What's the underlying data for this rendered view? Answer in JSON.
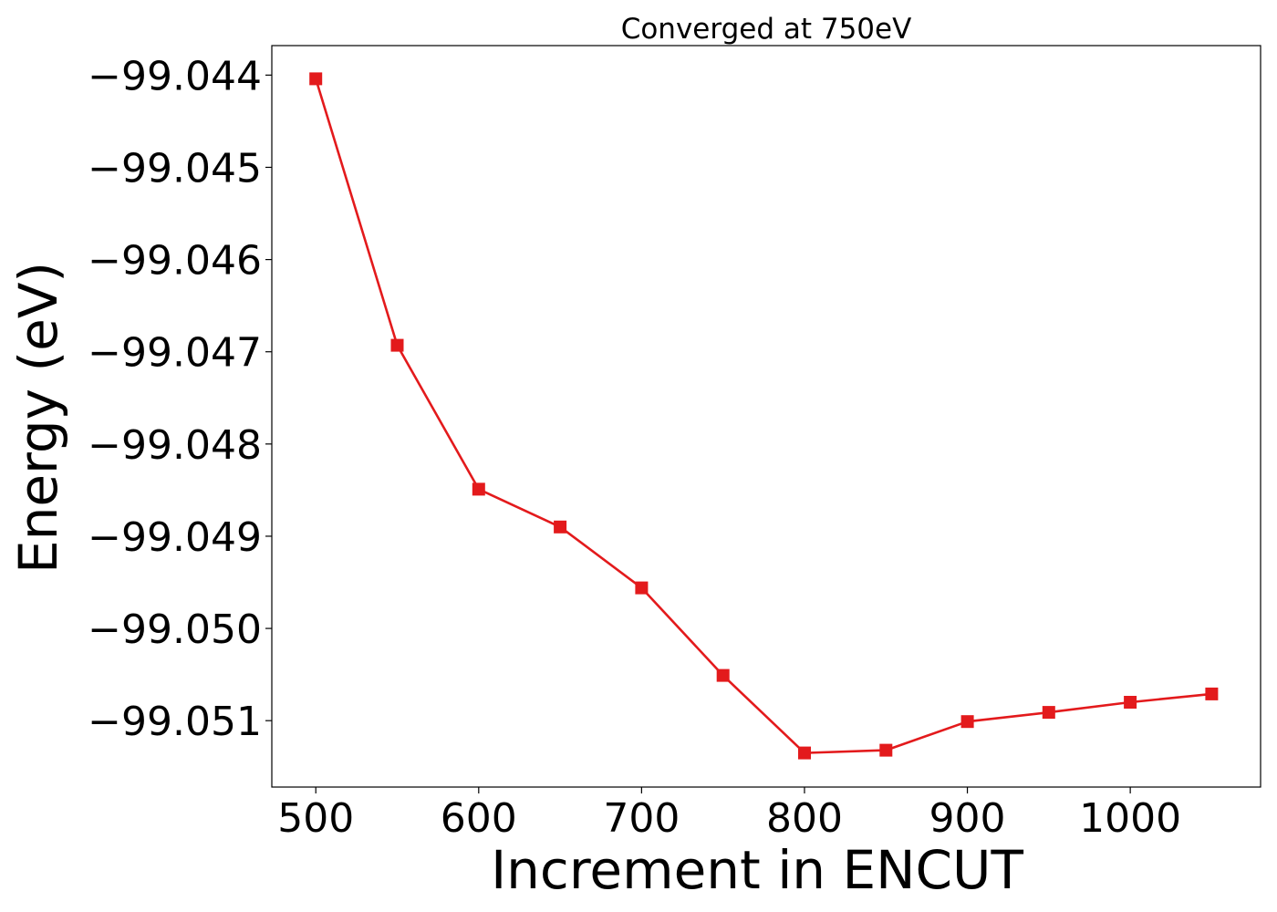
{
  "chart_data": {
    "type": "line",
    "title": "Converged at 750eV",
    "xlabel": "Increment in ENCUT",
    "ylabel": "Energy (eV)",
    "x": [
      500,
      550,
      600,
      650,
      700,
      750,
      800,
      850,
      900,
      950,
      1000,
      1050
    ],
    "series": [
      {
        "values": [
          -99.04404,
          -99.04693,
          -99.04849,
          -99.0489,
          -99.04956,
          -99.05051,
          -99.05135,
          -99.05132,
          -99.05101,
          -99.05091,
          -99.0508,
          -99.05071
        ]
      }
    ],
    "xlim": [
      473,
      1080
    ],
    "ylim": [
      -99.05172,
      -99.04368
    ],
    "x_ticks": [
      500,
      600,
      700,
      800,
      900,
      1000
    ],
    "x_tick_labels": [
      "500",
      "600",
      "700",
      "800",
      "900",
      "1000"
    ],
    "y_ticks": [
      -99.044,
      -99.045,
      -99.046,
      -99.047,
      -99.048,
      -99.049,
      -99.05,
      -99.051
    ],
    "y_tick_labels": [
      "−99.044",
      "−99.045",
      "−99.046",
      "−99.047",
      "−99.048",
      "−99.049",
      "−99.050",
      "−99.051"
    ],
    "line_color": "#e31a1c",
    "marker": "square",
    "grid": false,
    "legend": "none"
  }
}
